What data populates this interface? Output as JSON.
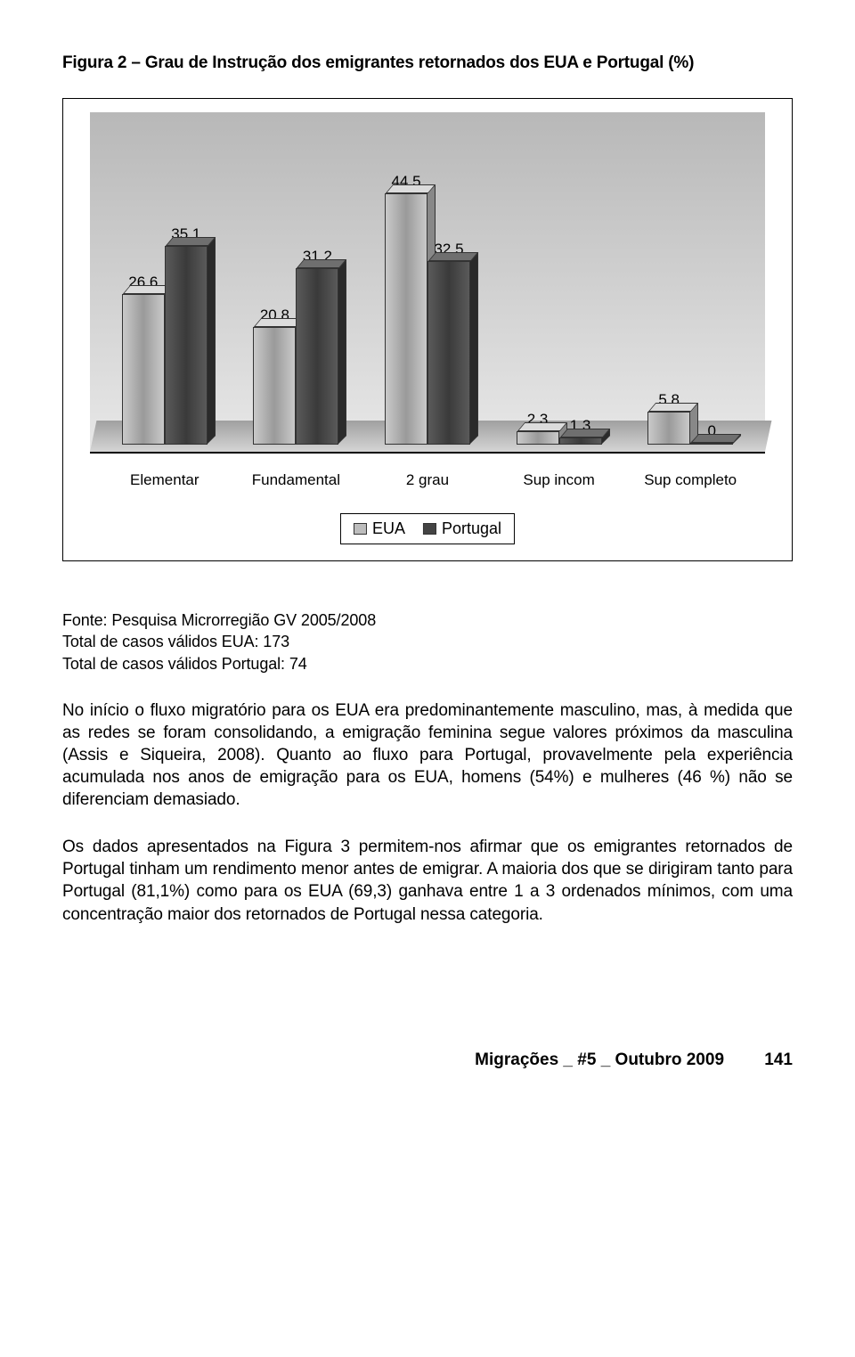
{
  "figure": {
    "title": "Figura 2 – Grau de Instrução dos emigrantes retornados dos EUA e Portugal (%)",
    "type": "bar",
    "ymax": 50,
    "categories": [
      "Elementar",
      "Fundamental",
      "2 grau",
      "Sup incom",
      "Sup completo"
    ],
    "series": [
      {
        "name": "EUA",
        "color_light": true,
        "values": [
          26.6,
          20.8,
          44.5,
          2.3,
          5.8
        ],
        "labels": [
          "26,6",
          "20,8",
          "44,5",
          "2,3",
          "5,8"
        ]
      },
      {
        "name": "Portugal",
        "color_light": false,
        "values": [
          35.1,
          31.2,
          32.5,
          1.3,
          0.0
        ],
        "labels": [
          "35,1",
          "31,2",
          "32,5",
          "1,3",
          "0"
        ]
      }
    ],
    "legend": [
      "EUA",
      "Portugal"
    ],
    "plot_bg_top": "#b8b8b8",
    "plot_bg_bottom": "#e8e8e8",
    "bar_colors": {
      "light_front": "#bdbdbd",
      "dark_front": "#444444"
    },
    "border_color": "#000000"
  },
  "source": {
    "line1": "Fonte: Pesquisa Microrregião GV 2005/2008",
    "line2": "Total de casos válidos EUA: 173",
    "line3": "Total de casos válidos Portugal: 74"
  },
  "paragraph1": "No início o fluxo migratório para os EUA era predominantemente masculino, mas, à medida que as redes se foram consolidando, a emigração feminina segue valores próximos da masculina (Assis e Siqueira, 2008). Quanto ao fluxo para Portugal, provavelmente pela experiência acumulada nos anos de emigração para os EUA, homens (54%) e mulheres (46 %) não se diferenciam demasiado.",
  "paragraph2": "Os dados apresentados na Figura 3 permitem-nos afirmar que os emigrantes retornados de Portugal tinham um rendimento menor antes de emigrar. A maioria dos que se dirigiram tanto para Portugal (81,1%) como para os EUA (69,3) ganhava entre  1 a 3 ordenados mínimos, com uma concentração maior dos retornados de Portugal nessa categoria.",
  "footer": {
    "journal": "Migrações _ #5 _ Outubro 2009",
    "page": "141"
  }
}
